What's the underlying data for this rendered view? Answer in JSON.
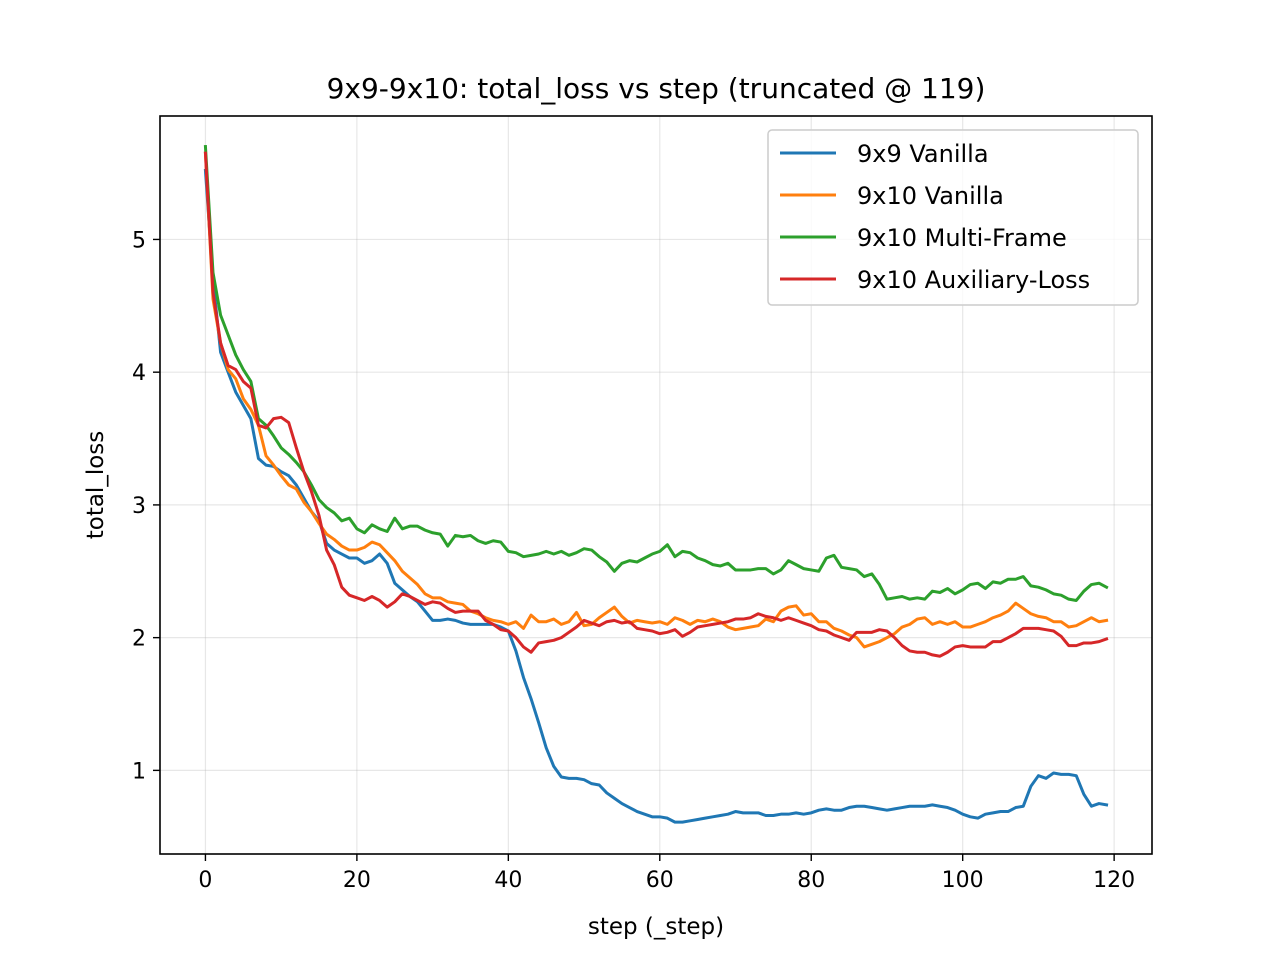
{
  "chart_data": {
    "type": "line",
    "title": "9x9-9x10: total_loss vs step (truncated @ 119)",
    "xlabel": "step (_step)",
    "ylabel": "total_loss",
    "xlim": [
      -6,
      125
    ],
    "ylim": [
      0.37,
      5.93
    ],
    "xticks": [
      0,
      20,
      40,
      60,
      80,
      100,
      120
    ],
    "yticks": [
      1,
      2,
      3,
      4,
      5
    ],
    "grid": true,
    "legend_position": "top-right",
    "x": [
      0,
      1,
      2,
      3,
      4,
      5,
      6,
      7,
      8,
      9,
      10,
      11,
      12,
      13,
      14,
      15,
      16,
      17,
      18,
      19,
      20,
      21,
      22,
      23,
      24,
      25,
      26,
      27,
      28,
      29,
      30,
      31,
      32,
      33,
      34,
      35,
      36,
      37,
      38,
      39,
      40,
      41,
      42,
      43,
      44,
      45,
      46,
      47,
      48,
      49,
      50,
      51,
      52,
      53,
      54,
      55,
      56,
      57,
      58,
      59,
      60,
      61,
      62,
      63,
      64,
      65,
      66,
      67,
      68,
      69,
      70,
      71,
      72,
      73,
      74,
      75,
      76,
      77,
      78,
      79,
      80,
      81,
      82,
      83,
      84,
      85,
      86,
      87,
      88,
      89,
      90,
      91,
      92,
      93,
      94,
      95,
      96,
      97,
      98,
      99,
      100,
      101,
      102,
      103,
      104,
      105,
      106,
      107,
      108,
      109,
      110,
      111,
      112,
      113,
      114,
      115,
      116,
      117,
      118,
      119
    ],
    "series": [
      {
        "name": "9x9 Vanilla",
        "color": "#1f77b4",
        "values": [
          5.52,
          4.7,
          4.15,
          4.0,
          3.85,
          3.75,
          3.65,
          3.35,
          3.3,
          3.29,
          3.25,
          3.22,
          3.15,
          3.05,
          2.95,
          2.88,
          2.71,
          2.66,
          2.63,
          2.6,
          2.6,
          2.56,
          2.58,
          2.63,
          2.56,
          2.41,
          2.36,
          2.31,
          2.27,
          2.2,
          2.13,
          2.13,
          2.14,
          2.13,
          2.11,
          2.1,
          2.1,
          2.1,
          2.1,
          2.08,
          2.05,
          1.9,
          1.7,
          1.54,
          1.36,
          1.17,
          1.03,
          0.95,
          0.94,
          0.94,
          0.93,
          0.9,
          0.89,
          0.83,
          0.79,
          0.75,
          0.72,
          0.69,
          0.67,
          0.65,
          0.65,
          0.64,
          0.61,
          0.61,
          0.62,
          0.63,
          0.64,
          0.65,
          0.66,
          0.67,
          0.69,
          0.68,
          0.68,
          0.68,
          0.66,
          0.66,
          0.67,
          0.67,
          0.68,
          0.67,
          0.68,
          0.7,
          0.71,
          0.7,
          0.7,
          0.72,
          0.73,
          0.73,
          0.72,
          0.71,
          0.7,
          0.71,
          0.72,
          0.73,
          0.73,
          0.73,
          0.74,
          0.73,
          0.72,
          0.7,
          0.67,
          0.65,
          0.64,
          0.67,
          0.68,
          0.69,
          0.69,
          0.72,
          0.73,
          0.88,
          0.96,
          0.94,
          0.98,
          0.97,
          0.97,
          0.96,
          0.82,
          0.73,
          0.75,
          0.74
        ]
      },
      {
        "name": "9x10 Vanilla",
        "color": "#ff7f0e",
        "values": [
          5.65,
          4.55,
          4.22,
          4.02,
          3.95,
          3.8,
          3.72,
          3.6,
          3.37,
          3.3,
          3.22,
          3.15,
          3.12,
          3.02,
          2.95,
          2.86,
          2.78,
          2.74,
          2.69,
          2.66,
          2.66,
          2.68,
          2.72,
          2.7,
          2.64,
          2.58,
          2.5,
          2.45,
          2.4,
          2.33,
          2.3,
          2.3,
          2.27,
          2.26,
          2.25,
          2.2,
          2.18,
          2.15,
          2.13,
          2.12,
          2.1,
          2.12,
          2.07,
          2.17,
          2.12,
          2.12,
          2.14,
          2.1,
          2.12,
          2.19,
          2.09,
          2.1,
          2.15,
          2.19,
          2.23,
          2.16,
          2.11,
          2.13,
          2.12,
          2.11,
          2.12,
          2.1,
          2.15,
          2.13,
          2.1,
          2.13,
          2.12,
          2.14,
          2.12,
          2.08,
          2.06,
          2.07,
          2.08,
          2.09,
          2.14,
          2.12,
          2.2,
          2.23,
          2.24,
          2.17,
          2.18,
          2.12,
          2.12,
          2.07,
          2.05,
          2.02,
          2.0,
          1.93,
          1.95,
          1.97,
          2.0,
          2.03,
          2.08,
          2.1,
          2.14,
          2.15,
          2.1,
          2.12,
          2.1,
          2.12,
          2.08,
          2.08,
          2.1,
          2.12,
          2.15,
          2.17,
          2.2,
          2.26,
          2.22,
          2.18,
          2.16,
          2.15,
          2.12,
          2.12,
          2.08,
          2.09,
          2.12,
          2.15,
          2.12,
          2.13
        ]
      },
      {
        "name": "9x10 Multi-Frame",
        "color": "#2ca02c",
        "values": [
          5.7,
          4.75,
          4.43,
          4.28,
          4.13,
          4.02,
          3.93,
          3.65,
          3.6,
          3.52,
          3.43,
          3.38,
          3.32,
          3.25,
          3.15,
          3.04,
          2.98,
          2.94,
          2.88,
          2.9,
          2.82,
          2.79,
          2.85,
          2.82,
          2.8,
          2.9,
          2.82,
          2.84,
          2.84,
          2.81,
          2.79,
          2.78,
          2.69,
          2.77,
          2.76,
          2.77,
          2.73,
          2.71,
          2.73,
          2.72,
          2.65,
          2.64,
          2.61,
          2.62,
          2.63,
          2.65,
          2.63,
          2.65,
          2.62,
          2.64,
          2.67,
          2.66,
          2.61,
          2.57,
          2.5,
          2.56,
          2.58,
          2.57,
          2.6,
          2.63,
          2.65,
          2.7,
          2.61,
          2.65,
          2.64,
          2.6,
          2.58,
          2.55,
          2.54,
          2.56,
          2.51,
          2.51,
          2.51,
          2.52,
          2.52,
          2.48,
          2.51,
          2.58,
          2.55,
          2.52,
          2.51,
          2.5,
          2.6,
          2.62,
          2.53,
          2.52,
          2.51,
          2.46,
          2.48,
          2.4,
          2.29,
          2.3,
          2.31,
          2.29,
          2.3,
          2.29,
          2.35,
          2.34,
          2.37,
          2.33,
          2.36,
          2.4,
          2.41,
          2.37,
          2.42,
          2.41,
          2.44,
          2.44,
          2.46,
          2.39,
          2.38,
          2.36,
          2.33,
          2.32,
          2.29,
          2.28,
          2.35,
          2.4,
          2.41,
          2.38
        ]
      },
      {
        "name": "9x10 Auxiliary-Loss",
        "color": "#d62728",
        "values": [
          5.65,
          4.6,
          4.22,
          4.05,
          4.02,
          3.93,
          3.88,
          3.6,
          3.58,
          3.65,
          3.66,
          3.62,
          3.43,
          3.25,
          3.1,
          2.92,
          2.66,
          2.55,
          2.38,
          2.32,
          2.3,
          2.28,
          2.31,
          2.28,
          2.23,
          2.27,
          2.33,
          2.31,
          2.28,
          2.25,
          2.27,
          2.26,
          2.22,
          2.19,
          2.2,
          2.2,
          2.2,
          2.13,
          2.1,
          2.06,
          2.05,
          2.0,
          1.93,
          1.89,
          1.96,
          1.97,
          1.98,
          2.0,
          2.04,
          2.08,
          2.13,
          2.11,
          2.09,
          2.12,
          2.13,
          2.11,
          2.12,
          2.07,
          2.06,
          2.05,
          2.03,
          2.04,
          2.06,
          2.01,
          2.04,
          2.08,
          2.09,
          2.1,
          2.11,
          2.12,
          2.14,
          2.14,
          2.15,
          2.18,
          2.16,
          2.15,
          2.13,
          2.15,
          2.13,
          2.11,
          2.09,
          2.06,
          2.05,
          2.02,
          2.0,
          1.98,
          2.04,
          2.04,
          2.04,
          2.06,
          2.05,
          2.0,
          1.94,
          1.9,
          1.89,
          1.89,
          1.87,
          1.86,
          1.89,
          1.93,
          1.94,
          1.93,
          1.93,
          1.93,
          1.97,
          1.97,
          2.0,
          2.03,
          2.07,
          2.07,
          2.07,
          2.06,
          2.05,
          2.01,
          1.94,
          1.94,
          1.96,
          1.96,
          1.97,
          1.99
        ]
      }
    ]
  }
}
